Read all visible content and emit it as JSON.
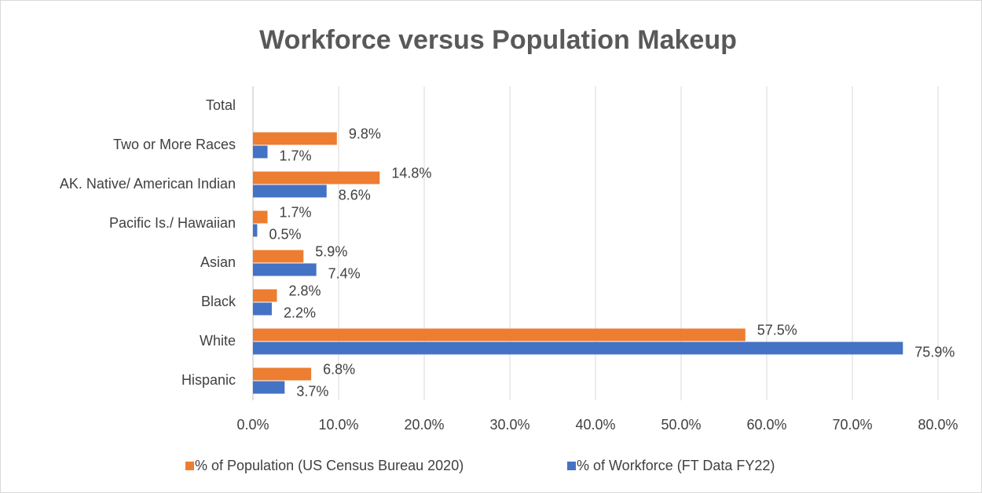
{
  "chart_data": {
    "type": "hbar",
    "title": "Workforce versus Population Makeup",
    "categories": [
      "Hispanic",
      "White",
      "Black",
      "Asian",
      "Pacific Is./ Hawaiian",
      "AK. Native/ American Indian",
      "Two or More Races",
      "Total"
    ],
    "series": [
      {
        "name": "% of Population (US Census Bureau 2020)",
        "color": "#ed7d31",
        "values": [
          6.8,
          57.5,
          2.8,
          5.9,
          1.7,
          14.8,
          9.8,
          null
        ],
        "value_labels": [
          "6.8%",
          "57.5%",
          "2.8%",
          "5.9%",
          "1.7%",
          "14.8%",
          "9.8%",
          null
        ]
      },
      {
        "name": "% of Workforce (FT Data FY22)",
        "color": "#4472c4",
        "values": [
          3.7,
          75.9,
          2.2,
          7.4,
          0.5,
          8.6,
          1.7,
          null
        ],
        "value_labels": [
          "3.7%",
          "75.9%",
          "2.2%",
          "7.4%",
          "0.5%",
          "8.6%",
          "1.7%",
          null
        ]
      }
    ],
    "xlim": [
      0,
      80
    ],
    "xticks": [
      {
        "value": 0,
        "label": "0.0%"
      },
      {
        "value": 10,
        "label": "10.0%"
      },
      {
        "value": 20,
        "label": "20.0%"
      },
      {
        "value": 30,
        "label": "30.0%"
      },
      {
        "value": 40,
        "label": "40.0%"
      },
      {
        "value": 50,
        "label": "50.0%"
      },
      {
        "value": 60,
        "label": "60.0%"
      },
      {
        "value": 70,
        "label": "70.0%"
      },
      {
        "value": 80,
        "label": "80.0%"
      }
    ],
    "grid": true,
    "legend": "bottom"
  }
}
